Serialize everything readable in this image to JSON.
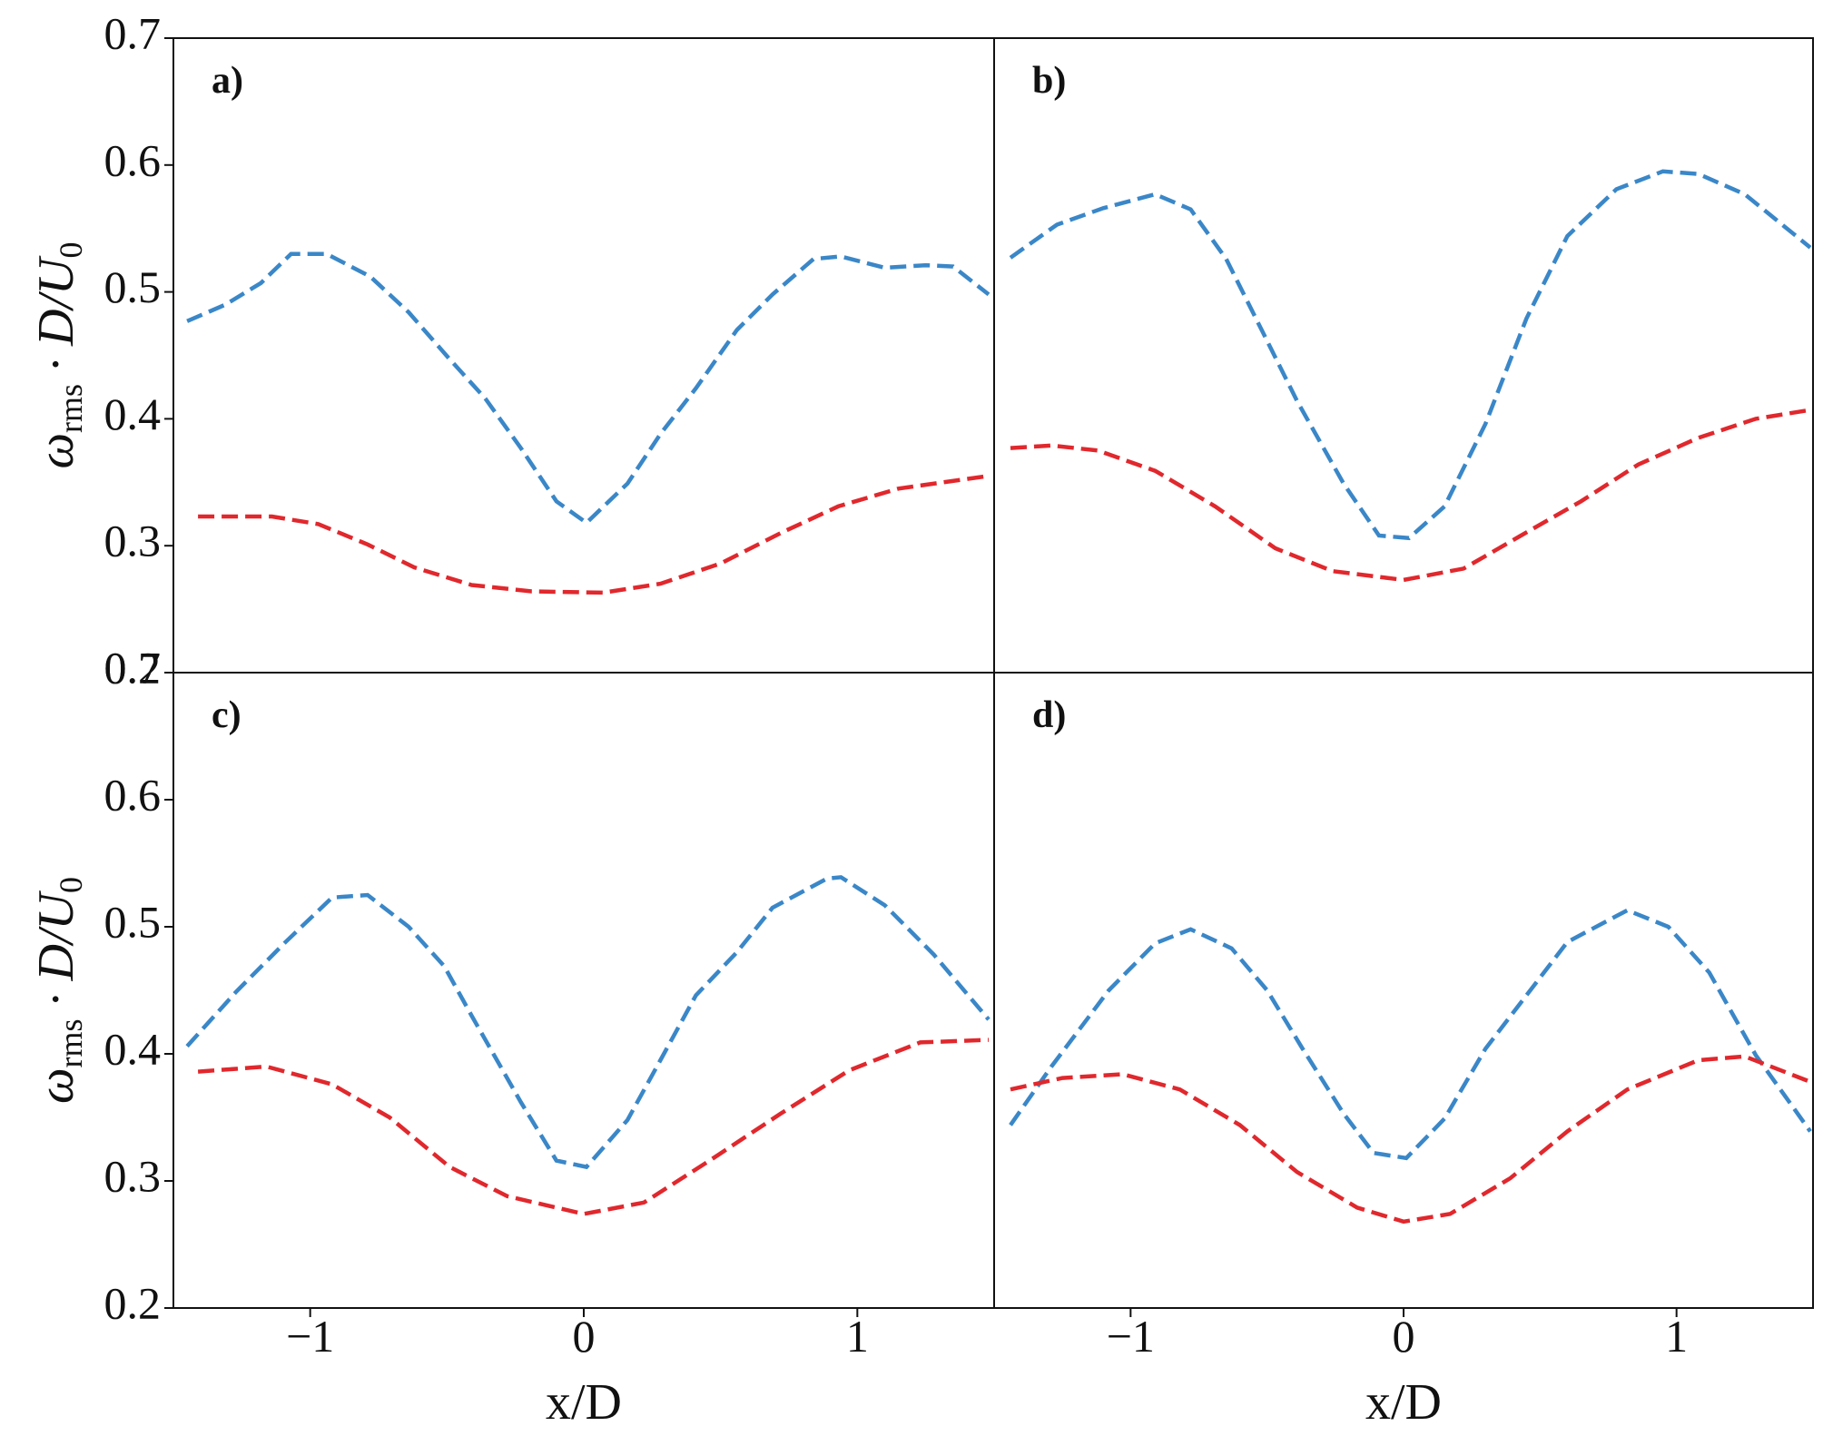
{
  "chart_data": [
    {
      "type": "line",
      "panel_label": "a)",
      "xlim": [
        -1.5,
        1.5
      ],
      "ylim": [
        0.2,
        0.7
      ],
      "yticks": [
        0.2,
        0.3,
        0.4,
        0.5,
        0.6,
        0.7
      ],
      "ylabel": [
        "ω",
        "rms",
        " · D/U",
        "0"
      ],
      "series": [
        {
          "color": "#3a87c8",
          "x": [
            -1.45,
            -1.31,
            -1.18,
            -1.07,
            -0.94,
            -0.78,
            -0.64,
            -0.49,
            -0.36,
            -0.23,
            -0.1,
            0.01,
            0.16,
            0.28,
            0.41,
            0.56,
            0.69,
            0.84,
            0.94,
            1.1,
            1.25,
            1.35,
            1.48
          ],
          "values": [
            0.477,
            0.49,
            0.507,
            0.53,
            0.53,
            0.512,
            0.484,
            0.447,
            0.416,
            0.377,
            0.335,
            0.318,
            0.349,
            0.388,
            0.424,
            0.47,
            0.498,
            0.526,
            0.528,
            0.519,
            0.521,
            0.52,
            0.498
          ]
        },
        {
          "color": "#e0282d",
          "x": [
            -1.41,
            -1.14,
            -0.97,
            -0.79,
            -0.62,
            -0.41,
            -0.19,
            0.07,
            0.28,
            0.5,
            0.72,
            0.93,
            1.15,
            1.48
          ],
          "values": [
            0.323,
            0.323,
            0.317,
            0.301,
            0.283,
            0.269,
            0.264,
            0.263,
            0.27,
            0.286,
            0.31,
            0.331,
            0.345,
            0.355
          ]
        }
      ]
    },
    {
      "type": "line",
      "panel_label": "b)",
      "xlim": [
        -1.5,
        1.5
      ],
      "ylim": [
        0.2,
        0.7
      ],
      "series": [
        {
          "color": "#3a87c8",
          "x": [
            -1.44,
            -1.27,
            -1.1,
            -0.91,
            -0.78,
            -0.65,
            -0.52,
            -0.39,
            -0.22,
            -0.09,
            0.02,
            0.15,
            0.3,
            0.45,
            0.6,
            0.78,
            0.95,
            1.08,
            1.25,
            1.49
          ],
          "values": [
            0.527,
            0.553,
            0.566,
            0.577,
            0.565,
            0.526,
            0.47,
            0.414,
            0.349,
            0.308,
            0.306,
            0.331,
            0.396,
            0.479,
            0.544,
            0.581,
            0.595,
            0.593,
            0.577,
            0.535
          ]
        },
        {
          "color": "#e0282d",
          "x": [
            -1.44,
            -1.29,
            -1.12,
            -0.91,
            -0.69,
            -0.47,
            -0.26,
            0,
            0.22,
            0.43,
            0.65,
            0.86,
            1.08,
            1.29,
            1.49
          ],
          "values": [
            0.377,
            0.379,
            0.375,
            0.359,
            0.331,
            0.298,
            0.28,
            0.273,
            0.282,
            0.308,
            0.335,
            0.364,
            0.385,
            0.4,
            0.407
          ]
        }
      ]
    },
    {
      "type": "line",
      "panel_label": "c)",
      "xlim": [
        -1.5,
        1.5
      ],
      "ylim": [
        0.2,
        0.7
      ],
      "yticks": [
        0.2,
        0.3,
        0.4,
        0.5,
        0.6,
        0.7
      ],
      "xticks": [
        {
          "value": -1,
          "label": "−1"
        },
        0,
        1
      ],
      "xlabel": "x/D",
      "ylabel": [
        "ω",
        "rms",
        " · D/U",
        "0"
      ],
      "series": [
        {
          "color": "#3a87c8",
          "x": [
            -1.45,
            -1.27,
            -1.09,
            -0.92,
            -0.79,
            -0.64,
            -0.51,
            -0.41,
            -0.23,
            -0.1,
            0.01,
            0.16,
            0.28,
            0.41,
            0.56,
            0.69,
            0.89,
            0.94,
            1.1,
            1.28,
            1.48
          ],
          "values": [
            0.406,
            0.449,
            0.488,
            0.523,
            0.525,
            0.5,
            0.469,
            0.43,
            0.362,
            0.316,
            0.311,
            0.348,
            0.395,
            0.446,
            0.48,
            0.515,
            0.538,
            0.539,
            0.517,
            0.478,
            0.427
          ]
        },
        {
          "color": "#e0282d",
          "x": [
            -1.41,
            -1.16,
            -0.92,
            -0.71,
            -0.49,
            -0.28,
            0,
            0.22,
            0.46,
            0.72,
            0.97,
            1.23,
            1.48
          ],
          "values": [
            0.386,
            0.39,
            0.376,
            0.35,
            0.311,
            0.288,
            0.274,
            0.283,
            0.316,
            0.353,
            0.387,
            0.409,
            0.411
          ]
        }
      ]
    },
    {
      "type": "line",
      "panel_label": "d)",
      "xlim": [
        -1.5,
        1.5
      ],
      "ylim": [
        0.2,
        0.7
      ],
      "xticks": [
        {
          "value": -1,
          "label": "−1"
        },
        0,
        1
      ],
      "xlabel": "x/D",
      "series": [
        {
          "color": "#3a87c8",
          "x": [
            -1.44,
            -1.29,
            -1.08,
            -0.91,
            -0.78,
            -0.63,
            -0.5,
            -0.37,
            -0.22,
            -0.11,
            0.01,
            0.15,
            0.3,
            0.45,
            0.6,
            0.82,
            0.97,
            1.12,
            1.29,
            1.49
          ],
          "values": [
            0.344,
            0.39,
            0.45,
            0.487,
            0.498,
            0.483,
            0.45,
            0.404,
            0.353,
            0.322,
            0.318,
            0.349,
            0.404,
            0.446,
            0.488,
            0.513,
            0.5,
            0.464,
            0.399,
            0.339
          ]
        },
        {
          "color": "#e0282d",
          "x": [
            -1.44,
            -1.25,
            -1.03,
            -0.82,
            -0.6,
            -0.39,
            -0.17,
            0,
            0.17,
            0.39,
            0.6,
            0.82,
            1.08,
            1.25,
            1.49
          ],
          "values": [
            0.372,
            0.381,
            0.384,
            0.372,
            0.344,
            0.307,
            0.279,
            0.268,
            0.274,
            0.302,
            0.339,
            0.372,
            0.395,
            0.398,
            0.378
          ]
        }
      ]
    }
  ]
}
